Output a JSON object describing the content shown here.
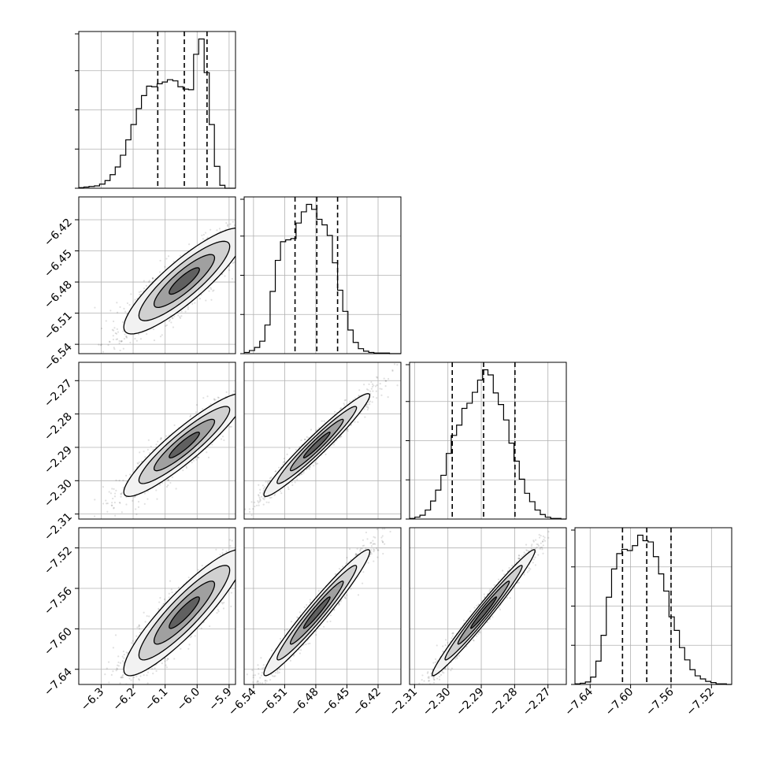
{
  "chart_data": {
    "type": "corner",
    "grid": true,
    "parameters": [
      {
        "range": [
          -6.37,
          -5.88
        ],
        "ticks": [
          -6.3,
          -6.2,
          -6.1,
          -6.0,
          -5.9
        ],
        "tick_labels": [
          "−6.3",
          "−6.2",
          "−6.1",
          "−6.0",
          "−5.9"
        ],
        "quantiles": [
          -6.123,
          -6.04,
          -5.969
        ],
        "hist_bins": [
          -6.37,
          -6.354,
          -6.338,
          -6.321,
          -6.305,
          -6.288,
          -6.272,
          -6.256,
          -6.24,
          -6.223,
          -6.207,
          -6.19,
          -6.174,
          -6.158,
          -6.142,
          -6.125,
          -6.109,
          -6.093,
          -6.076,
          -6.06,
          -6.044,
          -6.027,
          -6.011,
          -5.995,
          -5.978,
          -5.962,
          -5.946,
          -5.929,
          -5.913,
          -5.897,
          -5.88
        ],
        "hist_counts": [
          1,
          2,
          3,
          4,
          7,
          13,
          23,
          36,
          56,
          82,
          108,
          135,
          157,
          173,
          172,
          177,
          180,
          184,
          182,
          172,
          168,
          167,
          227,
          253,
          196,
          108,
          37,
          5,
          0,
          0
        ]
      },
      {
        "range": [
          -6.549,
          -6.398
        ],
        "ticks": [
          -6.54,
          -6.51,
          -6.48,
          -6.45,
          -6.42
        ],
        "tick_labels": [
          "−6.54",
          "−6.51",
          "−6.48",
          "−6.45",
          "−6.42"
        ],
        "quantiles": [
          -6.5,
          -6.479,
          -6.459
        ],
        "hist_bins": [
          -6.549,
          -6.544,
          -6.539,
          -6.534,
          -6.529,
          -6.524,
          -6.519,
          -6.514,
          -6.509,
          -6.504,
          -6.499,
          -6.494,
          -6.489,
          -6.484,
          -6.479,
          -6.474,
          -6.469,
          -6.464,
          -6.459,
          -6.454,
          -6.449,
          -6.444,
          -6.439,
          -6.434,
          -6.429,
          -6.424,
          -6.419,
          -6.414,
          -6.409,
          -6.404,
          -6.398
        ],
        "hist_counts": [
          2,
          5,
          10,
          20,
          46,
          100,
          150,
          180,
          183,
          185,
          210,
          228,
          240,
          232,
          216,
          207,
          190,
          146,
          102,
          68,
          38,
          18,
          8,
          4,
          2,
          1,
          1,
          1,
          0,
          0
        ]
      },
      {
        "range": [
          -2.3115,
          -2.2645
        ],
        "ticks": [
          -2.31,
          -2.3,
          -2.29,
          -2.28,
          -2.27
        ],
        "tick_labels": [
          "−2.31",
          "−2.30",
          "−2.29",
          "−2.28",
          "−2.27"
        ],
        "quantiles": [
          -2.2987,
          -2.2893,
          -2.2799
        ],
        "hist_bins": [
          -2.3115,
          -2.3099,
          -2.3084,
          -2.3068,
          -2.3052,
          -2.3037,
          -2.3021,
          -2.3005,
          -2.299,
          -2.2974,
          -2.2958,
          -2.2943,
          -2.2927,
          -2.2911,
          -2.2896,
          -2.288,
          -2.2864,
          -2.2849,
          -2.2833,
          -2.2817,
          -2.2802,
          -2.2786,
          -2.277,
          -2.2755,
          -2.2739,
          -2.2723,
          -2.2708,
          -2.2692,
          -2.2676,
          -2.2661,
          -2.2645
        ],
        "hist_counts": [
          1,
          3,
          6,
          14,
          28,
          45,
          68,
          102,
          130,
          146,
          172,
          180,
          197,
          216,
          232,
          224,
          196,
          178,
          154,
          118,
          90,
          62,
          40,
          27,
          14,
          7,
          3,
          1,
          1,
          0
        ]
      },
      {
        "range": [
          -7.655,
          -7.5
        ],
        "ticks": [
          -7.64,
          -7.6,
          -7.56,
          -7.52
        ],
        "tick_labels": [
          "−7.64",
          "−7.60",
          "−7.56",
          "−7.52"
        ],
        "quantiles": [
          -7.608,
          -7.584,
          -7.56
        ],
        "hist_bins": [
          -7.655,
          -7.6498,
          -7.6447,
          -7.6395,
          -7.6343,
          -7.6292,
          -7.624,
          -7.6188,
          -7.6137,
          -7.6085,
          -7.6033,
          -7.5982,
          -7.593,
          -7.5878,
          -7.5827,
          -7.5775,
          -7.5723,
          -7.5672,
          -7.562,
          -7.5568,
          -7.5517,
          -7.5465,
          -7.5413,
          -7.5362,
          -7.531,
          -7.5258,
          -7.5207,
          -7.5155,
          -7.5103,
          -7.5052,
          -7.5
        ],
        "hist_counts": [
          1,
          2,
          4,
          12,
          38,
          80,
          142,
          188,
          213,
          220,
          218,
          226,
          243,
          234,
          232,
          208,
          180,
          152,
          110,
          88,
          60,
          40,
          24,
          14,
          9,
          5,
          3,
          1,
          1,
          0
        ]
      }
    ],
    "pairs": [
      {
        "x": 0,
        "y": 1,
        "cov": [
          [
            0.00896,
            0.0021
          ],
          [
            0.0021,
            0.000651
          ]
        ]
      },
      {
        "x": 0,
        "y": 2,
        "cov": [
          [
            0.00896,
            0.000668
          ],
          [
            0.000668,
            5.95e-05
          ]
        ]
      },
      {
        "x": 1,
        "y": 2,
        "cov": [
          [
            0.000651,
            0.00019
          ],
          [
            0.00019,
            5.95e-05
          ]
        ]
      },
      {
        "x": 0,
        "y": 3,
        "cov": [
          [
            0.00896,
            0.00265
          ],
          [
            0.00265,
            0.000972
          ]
        ]
      },
      {
        "x": 1,
        "y": 3,
        "cov": [
          [
            0.000651,
            0.00077
          ],
          [
            0.00077,
            0.000972
          ]
        ]
      },
      {
        "x": 2,
        "y": 3,
        "cov": [
          [
            5.95e-05,
            0.000236
          ],
          [
            0.000236,
            0.000972
          ]
        ]
      }
    ]
  }
}
